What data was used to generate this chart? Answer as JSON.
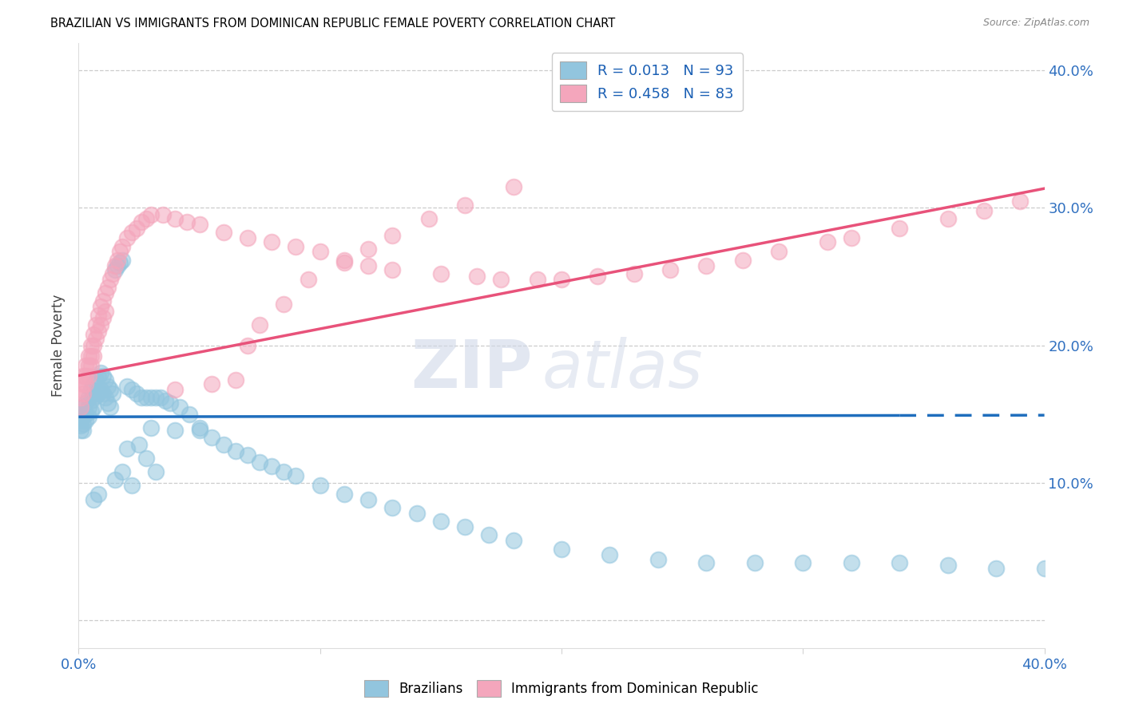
{
  "title": "BRAZILIAN VS IMMIGRANTS FROM DOMINICAN REPUBLIC FEMALE POVERTY CORRELATION CHART",
  "source": "Source: ZipAtlas.com",
  "ylabel": "Female Poverty",
  "xlim": [
    0.0,
    0.4
  ],
  "ylim": [
    -0.02,
    0.42
  ],
  "ytick_vals": [
    0.0,
    0.1,
    0.2,
    0.3,
    0.4
  ],
  "ytick_labels_right": [
    "",
    "10.0%",
    "20.0%",
    "30.0%",
    "40.0%"
  ],
  "xtick_vals": [
    0.0,
    0.1,
    0.2,
    0.3,
    0.4
  ],
  "xtick_labels": [
    "0.0%",
    "",
    "",
    "",
    "40.0%"
  ],
  "blue_color": "#92c5de",
  "pink_color": "#f4a6bc",
  "blue_line_color": "#1f6ebd",
  "pink_line_color": "#e8527a",
  "blue_line_solid_end": 0.34,
  "blue_line_y_intercept": 0.148,
  "blue_line_slope": 0.003,
  "pink_line_y_intercept": 0.178,
  "pink_line_slope": 0.34,
  "blue_R": 0.013,
  "blue_N": 93,
  "pink_R": 0.458,
  "pink_N": 83,
  "legend_r1_text": "R = 0.013   N = 93",
  "legend_r2_text": "R = 0.458   N = 83",
  "watermark_zip": "ZIP",
  "watermark_atlas": "atlas",
  "blue_x": [
    0.001,
    0.001,
    0.001,
    0.001,
    0.001,
    0.002,
    0.002,
    0.002,
    0.002,
    0.003,
    0.003,
    0.003,
    0.004,
    0.004,
    0.004,
    0.005,
    0.005,
    0.005,
    0.006,
    0.006,
    0.006,
    0.007,
    0.007,
    0.008,
    0.008,
    0.009,
    0.009,
    0.01,
    0.01,
    0.011,
    0.011,
    0.012,
    0.012,
    0.013,
    0.013,
    0.014,
    0.015,
    0.016,
    0.017,
    0.018,
    0.02,
    0.022,
    0.024,
    0.026,
    0.028,
    0.03,
    0.032,
    0.034,
    0.036,
    0.038,
    0.042,
    0.046,
    0.05,
    0.055,
    0.06,
    0.065,
    0.07,
    0.075,
    0.08,
    0.085,
    0.09,
    0.1,
    0.11,
    0.12,
    0.13,
    0.14,
    0.15,
    0.16,
    0.17,
    0.18,
    0.2,
    0.22,
    0.24,
    0.26,
    0.28,
    0.3,
    0.32,
    0.34,
    0.36,
    0.38,
    0.4,
    0.05,
    0.03,
    0.04,
    0.025,
    0.02,
    0.028,
    0.032,
    0.018,
    0.015,
    0.022,
    0.008,
    0.006
  ],
  "blue_y": [
    0.15,
    0.148,
    0.145,
    0.142,
    0.138,
    0.155,
    0.148,
    0.143,
    0.138,
    0.158,
    0.15,
    0.145,
    0.162,
    0.155,
    0.148,
    0.168,
    0.16,
    0.152,
    0.172,
    0.165,
    0.155,
    0.175,
    0.163,
    0.177,
    0.165,
    0.18,
    0.168,
    0.178,
    0.165,
    0.175,
    0.162,
    0.17,
    0.158,
    0.168,
    0.155,
    0.165,
    0.255,
    0.258,
    0.26,
    0.262,
    0.17,
    0.168,
    0.165,
    0.162,
    0.162,
    0.162,
    0.162,
    0.162,
    0.16,
    0.158,
    0.155,
    0.15,
    0.138,
    0.133,
    0.128,
    0.123,
    0.12,
    0.115,
    0.112,
    0.108,
    0.105,
    0.098,
    0.092,
    0.088,
    0.082,
    0.078,
    0.072,
    0.068,
    0.062,
    0.058,
    0.052,
    0.048,
    0.044,
    0.042,
    0.042,
    0.042,
    0.042,
    0.042,
    0.04,
    0.038,
    0.038,
    0.14,
    0.14,
    0.138,
    0.128,
    0.125,
    0.118,
    0.108,
    0.108,
    0.102,
    0.098,
    0.092,
    0.088
  ],
  "pink_x": [
    0.001,
    0.001,
    0.001,
    0.002,
    0.002,
    0.002,
    0.003,
    0.003,
    0.003,
    0.004,
    0.004,
    0.004,
    0.005,
    0.005,
    0.005,
    0.006,
    0.006,
    0.006,
    0.007,
    0.007,
    0.008,
    0.008,
    0.009,
    0.009,
    0.01,
    0.01,
    0.011,
    0.011,
    0.012,
    0.013,
    0.014,
    0.015,
    0.016,
    0.017,
    0.018,
    0.02,
    0.022,
    0.024,
    0.026,
    0.028,
    0.03,
    0.035,
    0.04,
    0.045,
    0.05,
    0.06,
    0.07,
    0.08,
    0.09,
    0.1,
    0.11,
    0.12,
    0.13,
    0.15,
    0.165,
    0.175,
    0.19,
    0.2,
    0.215,
    0.23,
    0.245,
    0.26,
    0.275,
    0.29,
    0.31,
    0.32,
    0.34,
    0.36,
    0.375,
    0.39,
    0.04,
    0.055,
    0.065,
    0.07,
    0.075,
    0.085,
    0.095,
    0.11,
    0.12,
    0.13,
    0.145,
    0.16,
    0.18
  ],
  "pink_y": [
    0.168,
    0.162,
    0.155,
    0.178,
    0.172,
    0.165,
    0.185,
    0.178,
    0.172,
    0.192,
    0.185,
    0.178,
    0.2,
    0.192,
    0.185,
    0.208,
    0.2,
    0.192,
    0.215,
    0.205,
    0.222,
    0.21,
    0.228,
    0.215,
    0.232,
    0.22,
    0.238,
    0.225,
    0.242,
    0.248,
    0.252,
    0.258,
    0.262,
    0.268,
    0.272,
    0.278,
    0.282,
    0.285,
    0.29,
    0.292,
    0.295,
    0.295,
    0.292,
    0.29,
    0.288,
    0.282,
    0.278,
    0.275,
    0.272,
    0.268,
    0.262,
    0.258,
    0.255,
    0.252,
    0.25,
    0.248,
    0.248,
    0.248,
    0.25,
    0.252,
    0.255,
    0.258,
    0.262,
    0.268,
    0.275,
    0.278,
    0.285,
    0.292,
    0.298,
    0.305,
    0.168,
    0.172,
    0.175,
    0.2,
    0.215,
    0.23,
    0.248,
    0.26,
    0.27,
    0.28,
    0.292,
    0.302,
    0.315
  ]
}
